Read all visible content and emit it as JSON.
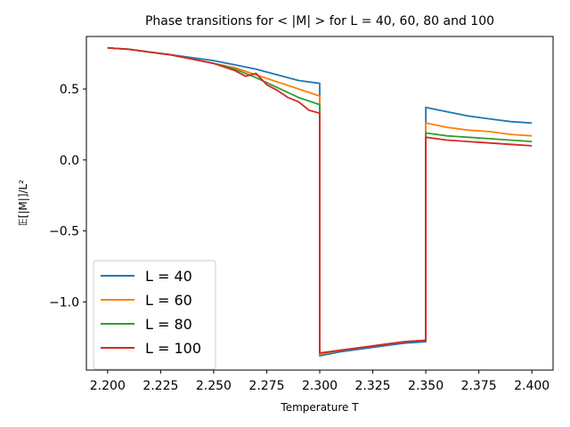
{
  "chart_data": {
    "type": "line",
    "title": "Phase transitions for < |M| > for L = 40, 60, 80 and 100",
    "xlabel": "Temperature T",
    "ylabel": "𝔼[|M|]/L²",
    "xlim": [
      2.19,
      2.41
    ],
    "ylim": [
      -1.48,
      0.87
    ],
    "xticks": [
      2.2,
      2.225,
      2.25,
      2.275,
      2.3,
      2.325,
      2.35,
      2.375,
      2.4
    ],
    "xtick_labels": [
      "2.200",
      "2.225",
      "2.250",
      "2.275",
      "2.300",
      "2.325",
      "2.350",
      "2.375",
      "2.400"
    ],
    "yticks": [
      0.5,
      0.0,
      -0.5,
      -1.0
    ],
    "ytick_labels": [
      "0.5",
      "0.0",
      "−0.5",
      "−1.0"
    ],
    "grid": false,
    "legend_position": "lower-left",
    "series": [
      {
        "name": "L = 40",
        "color": "#1f77b4",
        "x": [
          2.2,
          2.21,
          2.22,
          2.23,
          2.24,
          2.25,
          2.26,
          2.27,
          2.28,
          2.29,
          2.3,
          2.3,
          2.31,
          2.32,
          2.33,
          2.34,
          2.35,
          2.35,
          2.36,
          2.37,
          2.38,
          2.39,
          2.4
        ],
        "y": [
          0.79,
          0.78,
          0.76,
          0.74,
          0.72,
          0.7,
          0.67,
          0.64,
          0.6,
          0.56,
          0.54,
          -1.38,
          -1.35,
          -1.33,
          -1.31,
          -1.29,
          -1.28,
          0.37,
          0.34,
          0.31,
          0.29,
          0.27,
          0.26
        ]
      },
      {
        "name": "L = 60",
        "color": "#ff7f0e",
        "x": [
          2.2,
          2.21,
          2.22,
          2.23,
          2.24,
          2.25,
          2.26,
          2.27,
          2.28,
          2.29,
          2.3,
          2.3,
          2.31,
          2.32,
          2.33,
          2.34,
          2.35,
          2.35,
          2.36,
          2.37,
          2.38,
          2.39,
          2.4
        ],
        "y": [
          0.79,
          0.78,
          0.76,
          0.74,
          0.71,
          0.68,
          0.65,
          0.6,
          0.55,
          0.5,
          0.45,
          -1.37,
          -1.34,
          -1.32,
          -1.3,
          -1.28,
          -1.27,
          0.26,
          0.23,
          0.21,
          0.2,
          0.18,
          0.17
        ]
      },
      {
        "name": "L = 80",
        "color": "#2ca02c",
        "x": [
          2.2,
          2.21,
          2.22,
          2.23,
          2.24,
          2.25,
          2.26,
          2.27,
          2.28,
          2.29,
          2.3,
          2.3,
          2.31,
          2.32,
          2.33,
          2.34,
          2.35,
          2.35,
          2.36,
          2.37,
          2.38,
          2.39,
          2.4
        ],
        "y": [
          0.79,
          0.78,
          0.76,
          0.74,
          0.71,
          0.68,
          0.64,
          0.58,
          0.51,
          0.44,
          0.39,
          -1.36,
          -1.34,
          -1.32,
          -1.3,
          -1.28,
          -1.27,
          0.19,
          0.17,
          0.16,
          0.15,
          0.14,
          0.13
        ]
      },
      {
        "name": "L = 100",
        "color": "#d62728",
        "x": [
          2.2,
          2.21,
          2.22,
          2.23,
          2.24,
          2.25,
          2.26,
          2.265,
          2.27,
          2.275,
          2.28,
          2.285,
          2.29,
          2.295,
          2.3,
          2.3,
          2.31,
          2.32,
          2.33,
          2.34,
          2.35,
          2.35,
          2.36,
          2.37,
          2.38,
          2.39,
          2.4
        ],
        "y": [
          0.79,
          0.78,
          0.76,
          0.74,
          0.71,
          0.68,
          0.63,
          0.59,
          0.61,
          0.53,
          0.49,
          0.44,
          0.41,
          0.35,
          0.33,
          -1.36,
          -1.34,
          -1.32,
          -1.3,
          -1.28,
          -1.27,
          0.16,
          0.14,
          0.13,
          0.12,
          0.11,
          0.1
        ]
      }
    ]
  }
}
